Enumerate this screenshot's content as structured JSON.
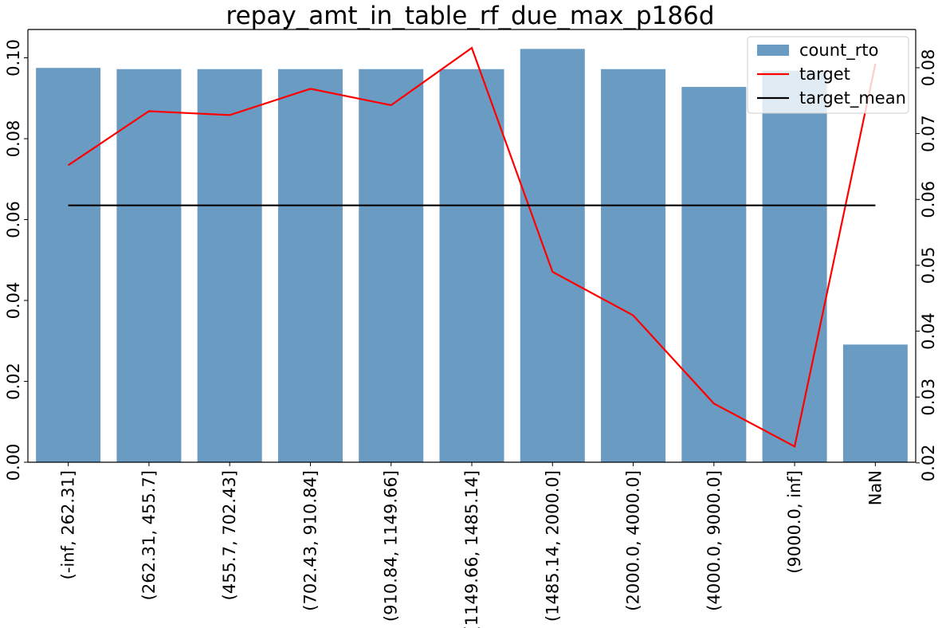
{
  "chart_data": {
    "type": "bar",
    "title": "repay_amt_in_table_rf_due_max_p186d",
    "xlabel": "",
    "ylabel": "",
    "categories": [
      "(-inf, 262.31]",
      "(262.31, 455.7]",
      "(455.7, 702.43]",
      "(702.43, 910.84]",
      "(910.84, 1149.66]",
      "(1149.66, 1485.14]",
      "(1485.14, 2000.0]",
      "(2000.0, 4000.0]",
      "(4000.0, 9000.0]",
      "(9000.0, inf]",
      "NaN"
    ],
    "series": [
      {
        "name": "count_rto",
        "type": "bar",
        "axis": "left",
        "color": "#6a9bc3",
        "values": [
          0.0975,
          0.0972,
          0.0972,
          0.0972,
          0.0972,
          0.0972,
          0.1022,
          0.0972,
          0.0928,
          0.0968,
          0.0291
        ]
      },
      {
        "name": "target",
        "type": "line",
        "axis": "right",
        "color": "#ff0000",
        "values": [
          0.0652,
          0.0734,
          0.0728,
          0.0768,
          0.0743,
          0.083,
          0.049,
          0.0424,
          0.029,
          0.0225,
          0.0806
        ]
      },
      {
        "name": "target_mean",
        "type": "line",
        "axis": "right",
        "color": "#000000",
        "values": [
          0.0591,
          0.0591,
          0.0591,
          0.0591,
          0.0591,
          0.0591,
          0.0591,
          0.0591,
          0.0591,
          0.0591,
          0.0591
        ]
      }
    ],
    "y_left": {
      "range": [
        0,
        0.107
      ],
      "ticks": [
        "0.00",
        "0.02",
        "0.04",
        "0.06",
        "0.08",
        "0.10"
      ],
      "tick_values": [
        0,
        0.02,
        0.04,
        0.06,
        0.08,
        0.1
      ]
    },
    "y_right": {
      "range": [
        0.0201,
        0.0858
      ],
      "ticks": [
        "0.02",
        "0.03",
        "0.04",
        "0.05",
        "0.06",
        "0.07",
        "0.08"
      ],
      "tick_values": [
        0.02,
        0.03,
        0.04,
        0.05,
        0.06,
        0.07,
        0.08
      ]
    },
    "grid": false,
    "legend": "top-right"
  }
}
